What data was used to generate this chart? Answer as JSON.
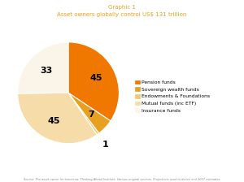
{
  "title_line1": "Graphic 1",
  "title_line2": "Asset owners globally control US$ 131 trillion",
  "labels": [
    "Pension funds",
    "Sovereign wealth funds",
    "Endowments & Foundations",
    "Mutual funds (inc ETF)",
    "Insurance funds"
  ],
  "values": [
    45,
    7,
    1,
    45,
    33
  ],
  "colors": [
    "#f07800",
    "#e8a020",
    "#f0c878",
    "#f5dca8",
    "#faf5e8"
  ],
  "pct_labels": [
    "45",
    "7",
    "1",
    "45",
    "33"
  ],
  "source_text": "Source: The asset owner for tomorrow. Thinking Ahead Institute. Various original sources. Projections used to derive end 2017 estimates.",
  "title_color": "#e8a020",
  "background_color": "#ffffff"
}
